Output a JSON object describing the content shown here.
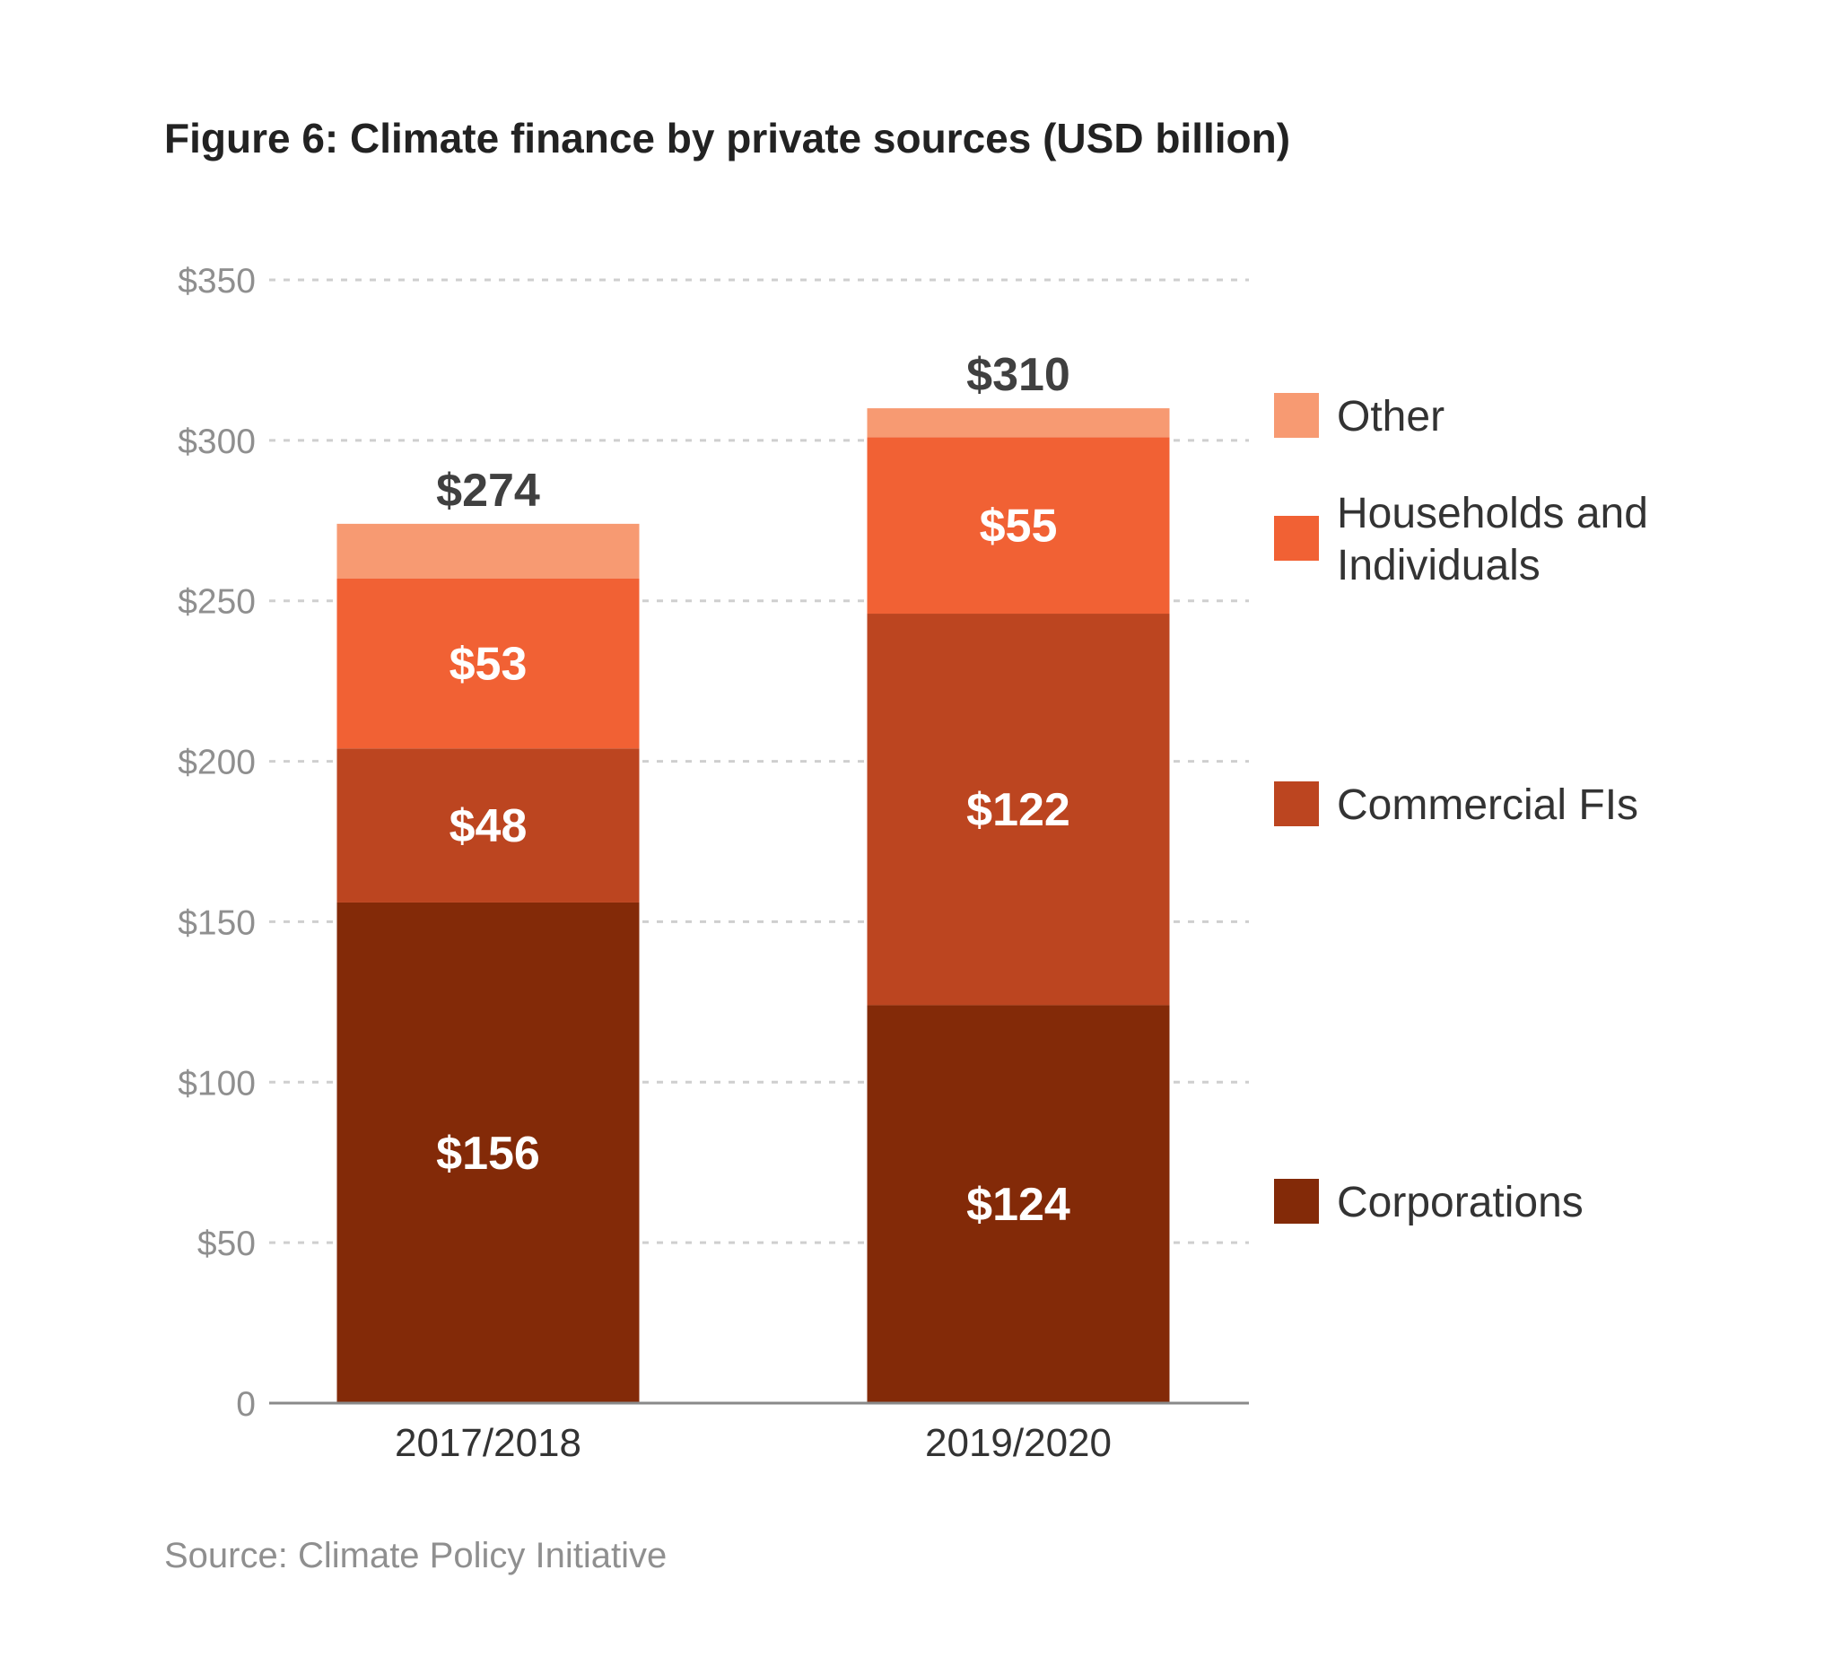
{
  "title": "Figure 6: Climate finance by private sources (USD billion)",
  "source": "Source: Climate Policy Initiative",
  "y_tick_labels": [
    "0",
    "$50",
    "$100",
    "$150",
    "$200",
    "$250",
    "$300",
    "$350"
  ],
  "colors": {
    "Corporations": "#832a08",
    "Commercial FIs": "#bc4520",
    "Households and Individuals": "#f16134",
    "Other": "#f79a72"
  },
  "chart_data": {
    "type": "bar",
    "stacked": true,
    "title": "Figure 6: Climate finance by private sources (USD billion)",
    "categories": [
      "2017/2018",
      "2019/2020"
    ],
    "series": [
      {
        "name": "Corporations",
        "values": [
          156,
          124
        ],
        "labels": [
          "$156",
          "$124"
        ]
      },
      {
        "name": "Commercial FIs",
        "values": [
          48,
          122
        ],
        "labels": [
          "$48",
          "$122"
        ]
      },
      {
        "name": "Households and Individuals",
        "values": [
          53,
          55
        ],
        "labels": [
          "$53",
          "$55"
        ]
      },
      {
        "name": "Other",
        "values": [
          17,
          9
        ],
        "labels": [
          "",
          ""
        ]
      }
    ],
    "totals": [
      274,
      310
    ],
    "total_labels": [
      "$274",
      "$310"
    ],
    "ylim": [
      0,
      350
    ],
    "yticks": [
      0,
      50,
      100,
      150,
      200,
      250,
      300,
      350
    ],
    "grid": true,
    "legend": {
      "position": "right",
      "entries": [
        "Other",
        "Households and Individuals",
        "Commercial FIs",
        "Corporations"
      ],
      "text_lines": [
        [
          "Other"
        ],
        [
          "Households and",
          "Individuals"
        ],
        [
          "Commercial FIs"
        ],
        [
          "Corporations"
        ]
      ]
    }
  }
}
